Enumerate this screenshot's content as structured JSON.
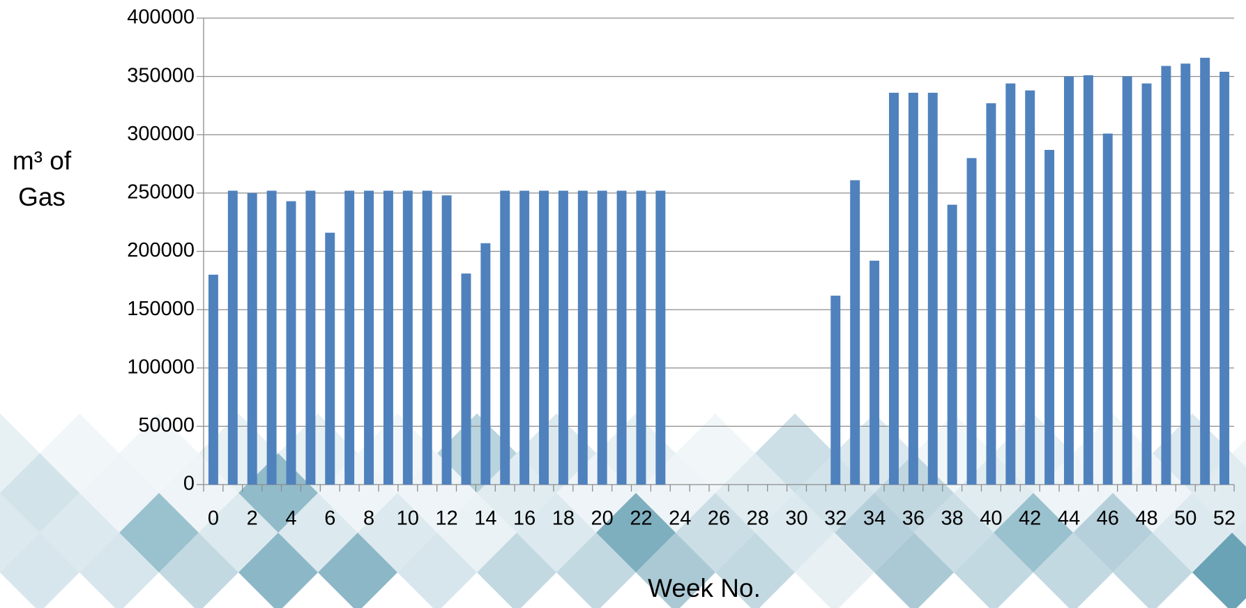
{
  "chart_data": {
    "type": "bar",
    "x_label": "Week No.",
    "y_label": "m³ of Gas",
    "categories": [
      "0",
      null,
      "2",
      null,
      "4",
      null,
      "6",
      null,
      "8",
      null,
      "10",
      null,
      "12",
      null,
      "14",
      null,
      "16",
      null,
      "18",
      null,
      "20",
      null,
      "22",
      null,
      "24",
      null,
      "26",
      null,
      "28",
      null,
      "30",
      null,
      "32",
      null,
      "34",
      null,
      "36",
      null,
      "38",
      null,
      "40",
      null,
      "42",
      null,
      "44",
      null,
      "46",
      null,
      "48",
      null,
      "50",
      null,
      "52"
    ],
    "values": [
      180000,
      252000,
      250000,
      252000,
      243000,
      252000,
      216000,
      252000,
      252000,
      252000,
      252000,
      252000,
      248000,
      181000,
      207000,
      252000,
      252000,
      252000,
      252000,
      252000,
      252000,
      252000,
      252000,
      252000,
      null,
      null,
      null,
      null,
      null,
      null,
      null,
      null,
      162000,
      261000,
      192000,
      336000,
      336000,
      336000,
      240000,
      280000,
      327000,
      344000,
      338000,
      287000,
      350000,
      351000,
      301000,
      350000,
      344000,
      359000,
      361000,
      366000,
      354000
    ],
    "color": "#4f81bd",
    "ylim": [
      0,
      400000
    ],
    "yticks": [
      0,
      50000,
      100000,
      150000,
      200000,
      250000,
      300000,
      350000,
      400000
    ],
    "grid": true
  }
}
